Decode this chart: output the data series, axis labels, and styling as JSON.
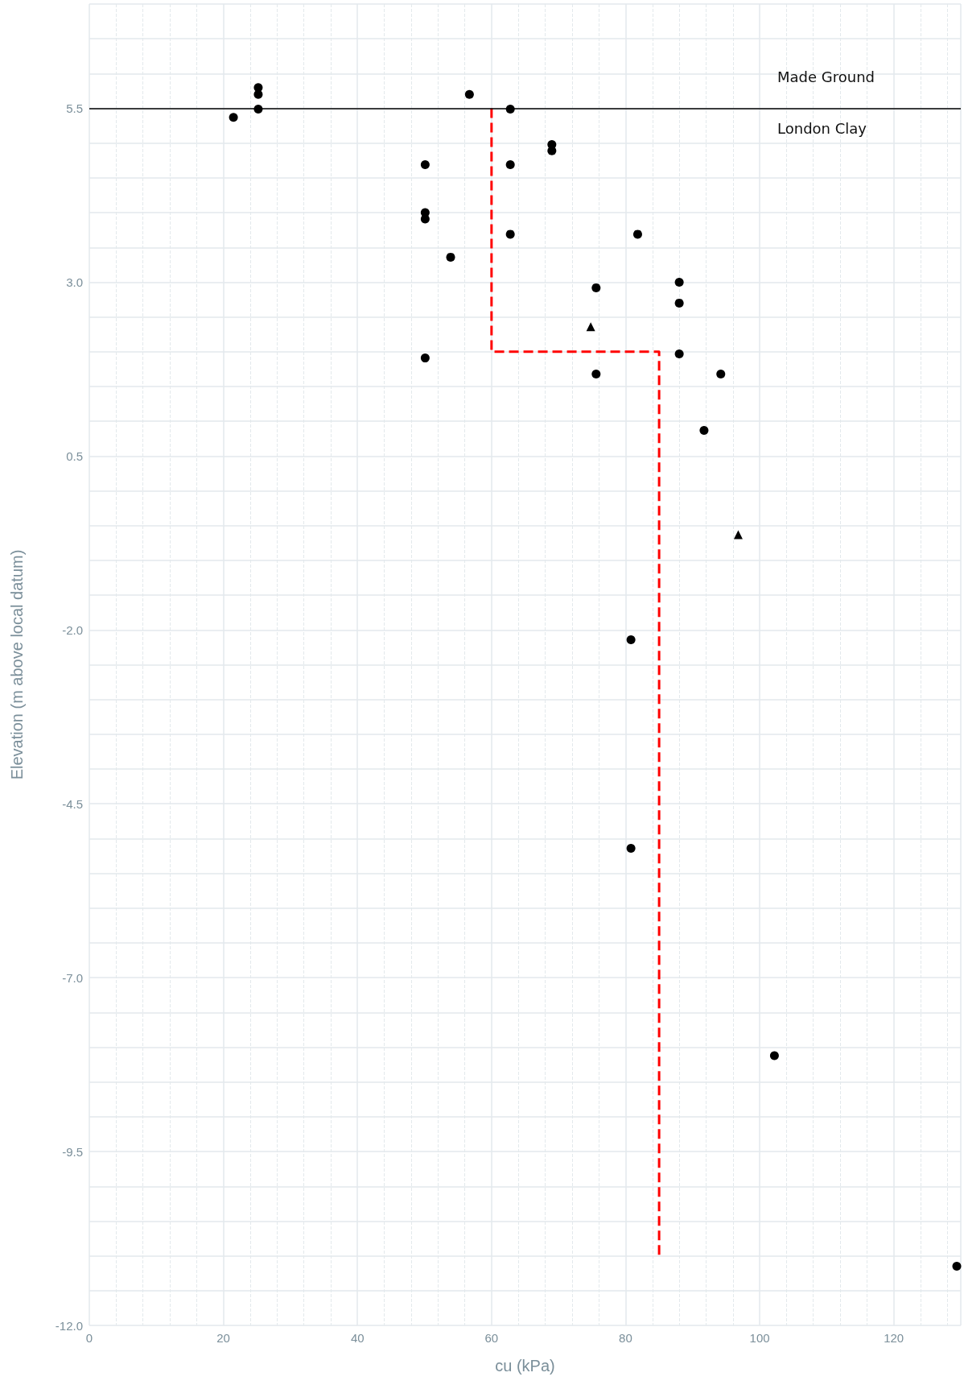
{
  "chart_data": {
    "type": "scatter",
    "xlabel": "cu (kPa)",
    "ylabel": "Elevation (m above local datum)",
    "xlim": [
      0,
      130
    ],
    "xticks": [
      0,
      20,
      40,
      60,
      80,
      100,
      120
    ],
    "ylim": [
      -12,
      7
    ],
    "yticks": [
      {
        "value": -12,
        "label": "-12.0"
      },
      {
        "value": -9.5,
        "label": "-9.5"
      },
      {
        "value": -7,
        "label": "-7.0"
      },
      {
        "value": -4.5,
        "label": "-4.5"
      },
      {
        "value": -2,
        "label": "-2.0"
      },
      {
        "value": 0.5,
        "label": "0.5"
      },
      {
        "value": 3,
        "label": "3.0"
      },
      {
        "value": 5.5,
        "label": "5.5"
      }
    ],
    "grid": true,
    "series": [
      {
        "type": "scatter",
        "marker": "circle",
        "color": "#000000",
        "x": [
          21.5,
          25.2,
          25.2,
          25.2,
          56.7,
          62.8,
          69.0,
          69.0,
          50.1,
          62.8,
          50.1,
          50.1,
          62.8,
          81.8,
          53.9,
          75.6,
          88.0,
          88.0,
          50.1,
          88.0,
          75.6,
          94.2,
          91.7,
          80.8,
          80.8,
          102.2,
          129.4
        ],
        "values": [
          5.37,
          5.8,
          5.7,
          5.49,
          5.7,
          5.49,
          4.98,
          4.89,
          4.69,
          4.69,
          4.0,
          3.91,
          3.69,
          3.69,
          3.36,
          2.92,
          3.0,
          2.7,
          1.91,
          1.97,
          1.68,
          1.68,
          0.87,
          -2.14,
          -5.14,
          -8.12,
          -11.15
        ]
      },
      {
        "type": "scatter",
        "marker": "triangle",
        "color": "#000000",
        "x": [
          74.8,
          96.8
        ],
        "values": [
          2.36,
          -0.63
        ]
      },
      {
        "type": "line",
        "marker": "none",
        "line_style": "dashed",
        "color": "#ff0000",
        "x": [
          60,
          60,
          85,
          85
        ],
        "values": [
          5.5,
          2.0,
          2.0,
          -11.0
        ]
      }
    ],
    "ref_lines": [
      {
        "axis": "y",
        "value": 5.5,
        "color": "#000000",
        "line_style": "solid"
      }
    ],
    "annotations": [
      "Made Ground",
      "London Clay"
    ]
  }
}
